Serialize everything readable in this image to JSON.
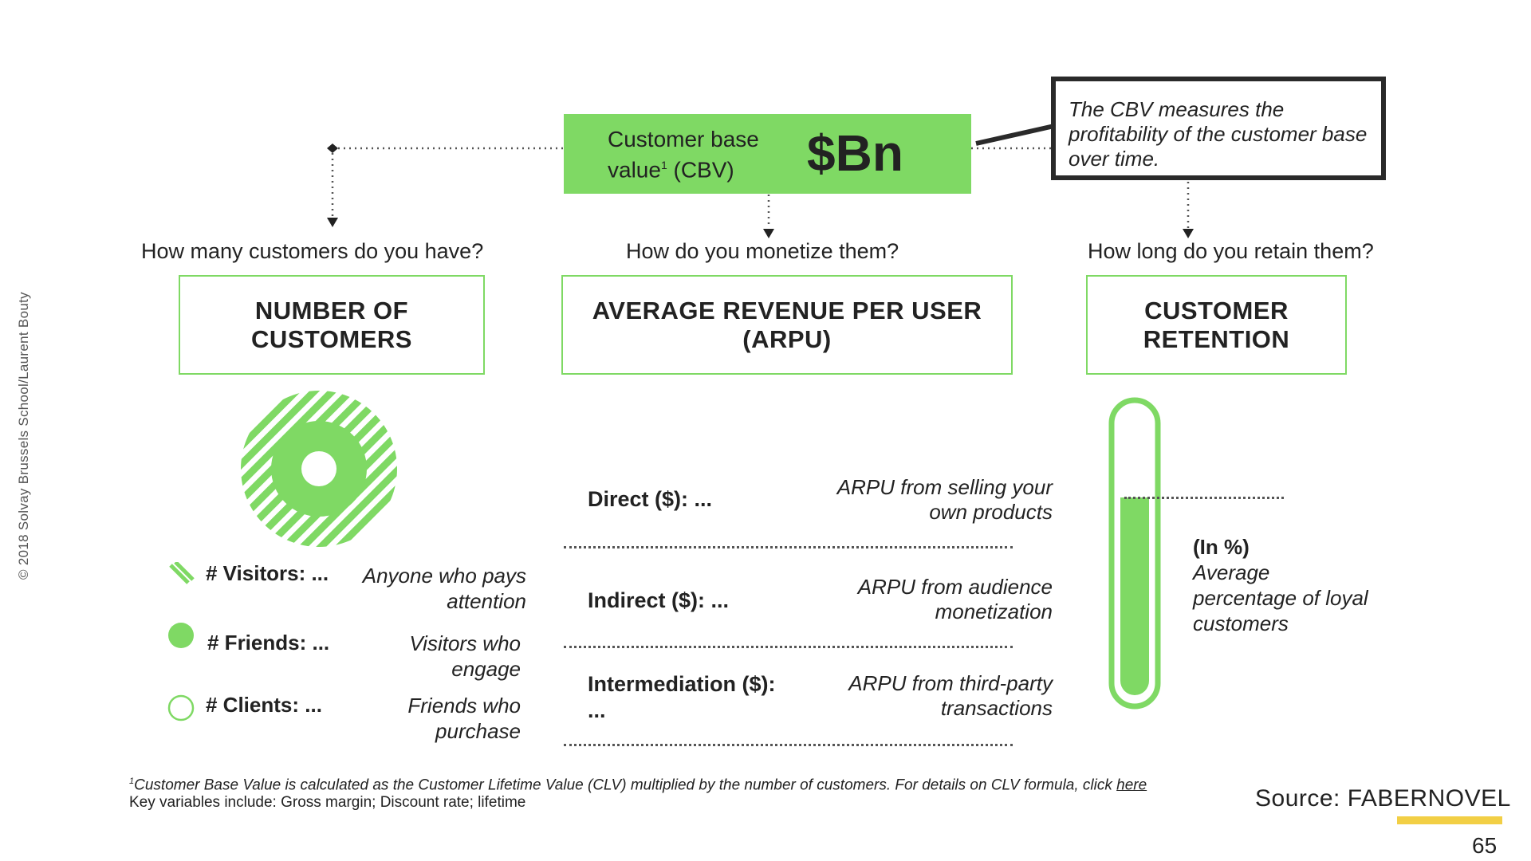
{
  "copyright": "© 2018 Solvay Brussels School/Laurent Bouty",
  "cbv": {
    "label_line1": "Customer base",
    "label_line2": "value",
    "label_sup": "1",
    "label_suffix": "(CBV)",
    "value": "$Bn"
  },
  "callout": "The CBV measures the profitability of the customer base over time.",
  "questions": {
    "customers": "How many customers do you have?",
    "monetize": "How do you monetize them?",
    "retain": "How long do you retain them?"
  },
  "pillars": {
    "customers_line1": "NUMBER OF",
    "customers_line2": "CUSTOMERS",
    "arpu_line1": "AVERAGE REVENUE PER USER",
    "arpu_line2": "(ARPU)",
    "retention_line1": "CUSTOMER",
    "retention_line2": "RETENTION"
  },
  "customer_segments": [
    {
      "label": "# Visitors: ...",
      "note": "Anyone who pays attention"
    },
    {
      "label": "# Friends: ...",
      "note": "Visitors who engage"
    },
    {
      "label": "# Clients: ...",
      "note": "Friends who purchase"
    }
  ],
  "arpu_items": [
    {
      "label": "Direct ($): ...",
      "note": "ARPU from selling your own products"
    },
    {
      "label": "Indirect ($): ...",
      "note": "ARPU from audience monetization"
    },
    {
      "label": "Intermediation ($): ...",
      "note": "ARPU from third-party transactions"
    }
  ],
  "retention": {
    "in_pct": "(In %)",
    "note": "Average percentage of loyal customers",
    "fill_fraction": 0.69
  },
  "footnote": {
    "sup": "1",
    "line1": "Customer Base Value is calculated as the Customer Lifetime Value (CLV) multiplied by the number of customers. For details on CLV formula, click",
    "link": "here",
    "line2": "Key variables include: Gross margin; Discount rate; lifetime"
  },
  "source": "Source: FABERNOVEL",
  "page_number": "65",
  "colors": {
    "green": "#7fd964",
    "dark": "#222222",
    "source_bar": "#f2cf45"
  }
}
